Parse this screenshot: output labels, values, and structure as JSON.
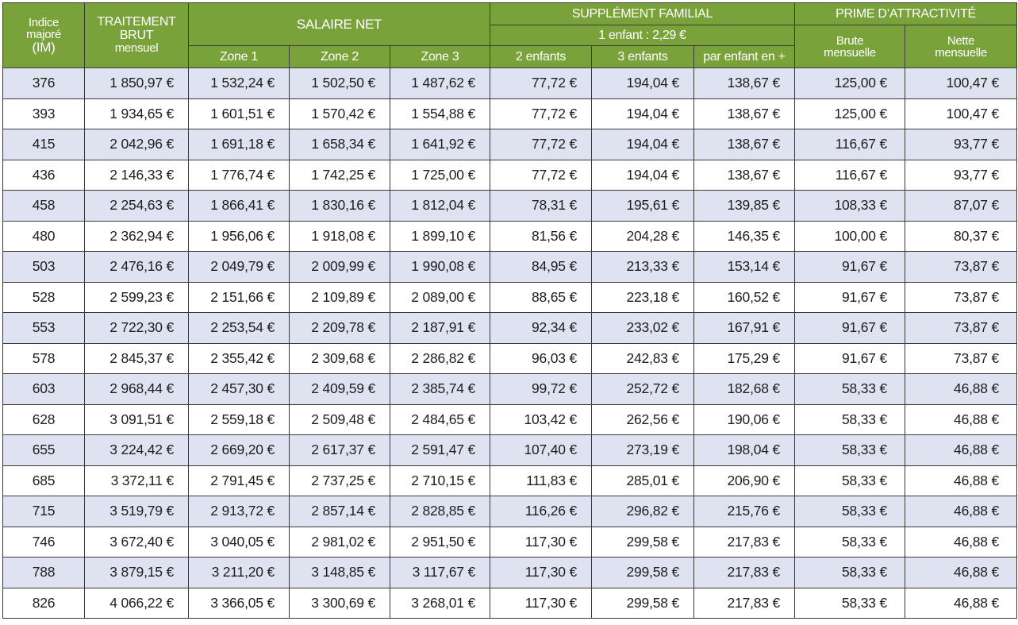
{
  "header": {
    "indice": [
      "Indice",
      "majoré",
      "(IM)"
    ],
    "traitement": [
      "TRAITEMENT",
      "BRUT",
      "mensuel"
    ],
    "salaire_net": "SALAIRE NET",
    "zones": [
      "Zone 1",
      "Zone 2",
      "Zone 3"
    ],
    "supplement": "SUPPLÉMENT FAMILIAL",
    "supplement_sub": "1 enfant : 2,29 €",
    "supp_cols": [
      "2 enfants",
      "3 enfants",
      "par enfant en +"
    ],
    "prime": "PRIME D’ATTRACTIVITÉ",
    "prime_cols": [
      [
        "Brute",
        "mensuelle"
      ],
      [
        "Nette",
        "mensuelle"
      ]
    ]
  },
  "rows": [
    [
      "376",
      "1 850,97 €",
      "1 532,24 €",
      "1 502,50 €",
      "1 487,62 €",
      "77,72 €",
      "194,04 €",
      "138,67 €",
      "125,00 €",
      "100,47 €"
    ],
    [
      "393",
      "1 934,65 €",
      "1 601,51 €",
      "1 570,42 €",
      "1 554,88 €",
      "77,72 €",
      "194,04 €",
      "138,67 €",
      "125,00 €",
      "100,47 €"
    ],
    [
      "415",
      "2 042,96 €",
      "1 691,18 €",
      "1 658,34 €",
      "1 641,92 €",
      "77,72 €",
      "194,04 €",
      "138,67 €",
      "116,67 €",
      "93,77 €"
    ],
    [
      "436",
      "2 146,33 €",
      "1 776,74 €",
      "1 742,25 €",
      "1 725,00 €",
      "77,72 €",
      "194,04 €",
      "138,67 €",
      "116,67 €",
      "93,77 €"
    ],
    [
      "458",
      "2 254,63 €",
      "1 866,41 €",
      "1 830,16 €",
      "1 812,04 €",
      "78,31 €",
      "195,61 €",
      "139,85 €",
      "108,33 €",
      "87,07 €"
    ],
    [
      "480",
      "2 362,94 €",
      "1 956,06 €",
      "1 918,08 €",
      "1 899,10 €",
      "81,56 €",
      "204,28 €",
      "146,35 €",
      "100,00 €",
      "80,37 €"
    ],
    [
      "503",
      "2 476,16 €",
      "2 049,79 €",
      "2 009,99 €",
      "1 990,08 €",
      "84,95 €",
      "213,33 €",
      "153,14 €",
      "91,67 €",
      "73,87 €"
    ],
    [
      "528",
      "2 599,23 €",
      "2 151,66 €",
      "2 109,89 €",
      "2 089,00 €",
      "88,65 €",
      "223,18 €",
      "160,52 €",
      "91,67 €",
      "73,87 €"
    ],
    [
      "553",
      "2 722,30 €",
      "2 253,54 €",
      "2 209,78 €",
      "2 187,91 €",
      "92,34 €",
      "233,02 €",
      "167,91 €",
      "91,67 €",
      "73,87 €"
    ],
    [
      "578",
      "2 845,37 €",
      "2 355,42 €",
      "2 309,68 €",
      "2 286,82 €",
      "96,03 €",
      "242,83 €",
      "175,29 €",
      "91,67 €",
      "73,87 €"
    ],
    [
      "603",
      "2 968,44 €",
      "2 457,30 €",
      "2 409,59 €",
      "2 385,74 €",
      "99,72 €",
      "252,72 €",
      "182,68 €",
      "58,33 €",
      "46,88 €"
    ],
    [
      "628",
      "3 091,51 €",
      "2 559,18 €",
      "2 509,48 €",
      "2 484,65 €",
      "103,42 €",
      "262,56 €",
      "190,06 €",
      "58,33 €",
      "46,88 €"
    ],
    [
      "655",
      "3 224,42 €",
      "2 669,20 €",
      "2 617,37 €",
      "2 591,47 €",
      "107,40 €",
      "273,19 €",
      "198,04 €",
      "58,33 €",
      "46,88 €"
    ],
    [
      "685",
      "3 372,11 €",
      "2 791,45 €",
      "2 737,25 €",
      "2 710,15 €",
      "111,83 €",
      "285,01 €",
      "206,90 €",
      "58,33 €",
      "46,88 €"
    ],
    [
      "715",
      "3 519,79 €",
      "2 913,72 €",
      "2 857,14 €",
      "2 828,85 €",
      "116,26 €",
      "296,82 €",
      "215,76 €",
      "58,33 €",
      "46,88 €"
    ],
    [
      "746",
      "3 672,40 €",
      "3 040,05 €",
      "2 981,02 €",
      "2 951,50 €",
      "117,30 €",
      "299,58 €",
      "217,83 €",
      "58,33 €",
      "46,88 €"
    ],
    [
      "788",
      "3 879,15 €",
      "3 211,20 €",
      "3 148,85 €",
      "3 117,67 €",
      "117,30 €",
      "299,58 €",
      "217,83 €",
      "58,33 €",
      "46,88 €"
    ],
    [
      "826",
      "4 066,22 €",
      "3 366,05 €",
      "3 300,69 €",
      "3 268,01 €",
      "117,30 €",
      "299,58 €",
      "217,83 €",
      "58,33 €",
      "46,88 €"
    ]
  ],
  "colors": {
    "header_green": "#79a33a",
    "row_band": "#dfe3f1",
    "row_plain": "#ffffff"
  }
}
